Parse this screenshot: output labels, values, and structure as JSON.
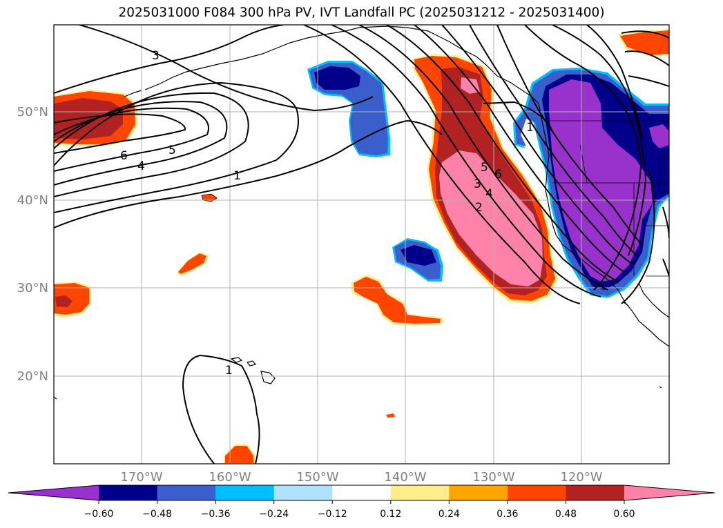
{
  "title": "2025031000 F084 300 hPa PV, IVT Landfall PC (2025031212 - 2025031400)",
  "lat_labels": [
    "50°N",
    "40°N",
    "30°N",
    "20°N"
  ],
  "lon_labels": [
    "170°W",
    "160°W",
    "150°W",
    "140°W",
    "130°W",
    "120°W"
  ],
  "contour_labels": [
    "3",
    "6",
    "5",
    "4",
    "1",
    "5",
    "6",
    "3",
    "4",
    "2",
    "1",
    "1"
  ],
  "colorbar": {
    "tick_labels": [
      "−0.60",
      "−0.48",
      "−0.36",
      "−0.24",
      "−0.12",
      "0.12",
      "0.24",
      "0.36",
      "0.48",
      "0.60"
    ],
    "colors": [
      "#9932CC",
      "#00008B",
      "#3A5FCD",
      "#00BFFF",
      "#B0E2FF",
      "#FFFFFF",
      "#FFEC8B",
      "#FFA500",
      "#FF4500",
      "#B22222",
      "#FF82AB"
    ]
  }
}
